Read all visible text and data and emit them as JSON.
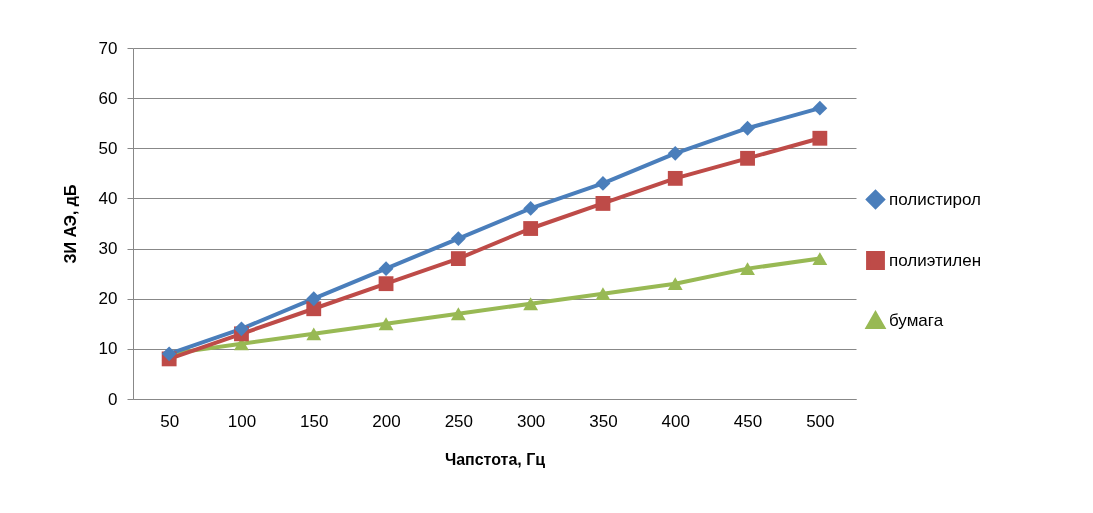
{
  "chart_data": {
    "type": "line",
    "xlabel": "Чапстота, Гц",
    "ylabel": "ЗИ АЭ, дБ",
    "categories": [
      "50",
      "100",
      "150",
      "200",
      "250",
      "300",
      "350",
      "400",
      "450",
      "500"
    ],
    "series": [
      {
        "name": "полистирол",
        "color": "#4a7ebb",
        "marker": "diamond",
        "values": [
          9,
          14,
          20,
          26,
          32,
          38,
          43,
          49,
          54,
          58
        ]
      },
      {
        "name": "полиэтилен",
        "color": "#be4b48",
        "marker": "square",
        "values": [
          8,
          13,
          18,
          23,
          28,
          34,
          39,
          44,
          48,
          52
        ]
      },
      {
        "name": "бумага",
        "color": "#98b954",
        "marker": "triangle",
        "values": [
          9,
          11,
          13,
          15,
          17,
          19,
          21,
          23,
          26,
          28
        ]
      }
    ],
    "ylim": [
      0,
      70
    ],
    "yticks": [
      0,
      10,
      20,
      30,
      40,
      50,
      60,
      70
    ],
    "grid": "y",
    "legend": "right",
    "line_style": "solid"
  }
}
